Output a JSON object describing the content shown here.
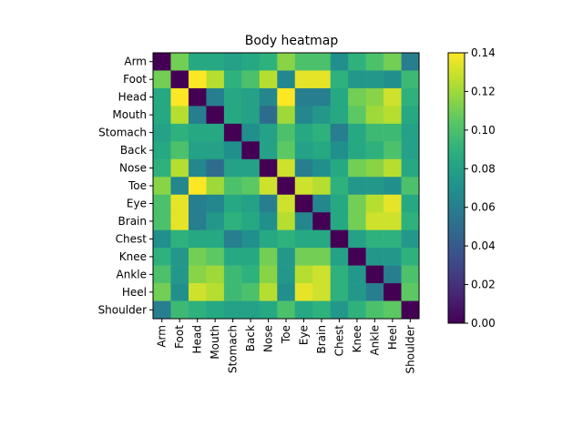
{
  "chart_data": {
    "type": "heatmap",
    "title": "Body heatmap",
    "xlabel": "",
    "ylabel": "",
    "labels": [
      "Arm",
      "Foot",
      "Head",
      "Mouth",
      "Stomach",
      "Back",
      "Nose",
      "Toe",
      "Eye",
      "Brain",
      "Chest",
      "Knee",
      "Ankle",
      "Heel",
      "Shoulder"
    ],
    "colorbar": {
      "min": 0.0,
      "max": 0.14,
      "ticks": [
        "0.00",
        "0.02",
        "0.04",
        "0.06",
        "0.08",
        "0.10",
        "0.12",
        "0.14"
      ],
      "colormap": "viridis"
    },
    "matrix": [
      [
        0.0,
        0.11,
        0.085,
        0.085,
        0.08,
        0.085,
        0.09,
        0.115,
        0.1,
        0.1,
        0.07,
        0.09,
        0.1,
        0.11,
        0.06
      ],
      [
        0.11,
        0.0,
        0.14,
        0.125,
        0.09,
        0.1,
        0.125,
        0.065,
        0.135,
        0.135,
        0.09,
        0.075,
        0.075,
        0.07,
        0.095
      ],
      [
        0.085,
        0.14,
        0.0,
        0.06,
        0.085,
        0.08,
        0.065,
        0.14,
        0.06,
        0.06,
        0.085,
        0.11,
        0.115,
        0.13,
        0.09
      ],
      [
        0.085,
        0.125,
        0.06,
        0.0,
        0.085,
        0.08,
        0.05,
        0.12,
        0.065,
        0.075,
        0.085,
        0.105,
        0.12,
        0.125,
        0.085
      ],
      [
        0.08,
        0.09,
        0.085,
        0.085,
        0.0,
        0.07,
        0.08,
        0.1,
        0.085,
        0.09,
        0.06,
        0.085,
        0.095,
        0.095,
        0.08
      ],
      [
        0.085,
        0.1,
        0.08,
        0.08,
        0.07,
        0.0,
        0.08,
        0.105,
        0.08,
        0.085,
        0.07,
        0.085,
        0.09,
        0.1,
        0.08
      ],
      [
        0.09,
        0.125,
        0.065,
        0.05,
        0.08,
        0.08,
        0.0,
        0.13,
        0.06,
        0.07,
        0.085,
        0.11,
        0.115,
        0.125,
        0.085
      ],
      [
        0.115,
        0.065,
        0.14,
        0.12,
        0.1,
        0.105,
        0.13,
        0.0,
        0.13,
        0.125,
        0.09,
        0.075,
        0.075,
        0.07,
        0.1
      ],
      [
        0.1,
        0.135,
        0.06,
        0.065,
        0.085,
        0.08,
        0.06,
        0.13,
        0.0,
        0.065,
        0.085,
        0.11,
        0.125,
        0.135,
        0.085
      ],
      [
        0.1,
        0.135,
        0.06,
        0.075,
        0.09,
        0.085,
        0.07,
        0.125,
        0.065,
        0.0,
        0.085,
        0.11,
        0.13,
        0.13,
        0.09
      ],
      [
        0.07,
        0.09,
        0.085,
        0.085,
        0.06,
        0.07,
        0.085,
        0.09,
        0.085,
        0.085,
        0.0,
        0.08,
        0.09,
        0.09,
        0.075
      ],
      [
        0.09,
        0.075,
        0.11,
        0.105,
        0.085,
        0.085,
        0.11,
        0.075,
        0.11,
        0.11,
        0.08,
        0.0,
        0.075,
        0.075,
        0.09
      ],
      [
        0.1,
        0.075,
        0.115,
        0.12,
        0.095,
        0.09,
        0.115,
        0.075,
        0.125,
        0.13,
        0.09,
        0.075,
        0.0,
        0.06,
        0.1
      ],
      [
        0.11,
        0.07,
        0.13,
        0.125,
        0.095,
        0.1,
        0.125,
        0.07,
        0.135,
        0.13,
        0.09,
        0.075,
        0.06,
        0.0,
        0.105
      ],
      [
        0.06,
        0.095,
        0.09,
        0.085,
        0.08,
        0.08,
        0.085,
        0.1,
        0.085,
        0.09,
        0.075,
        0.09,
        0.1,
        0.105,
        0.0
      ]
    ]
  }
}
